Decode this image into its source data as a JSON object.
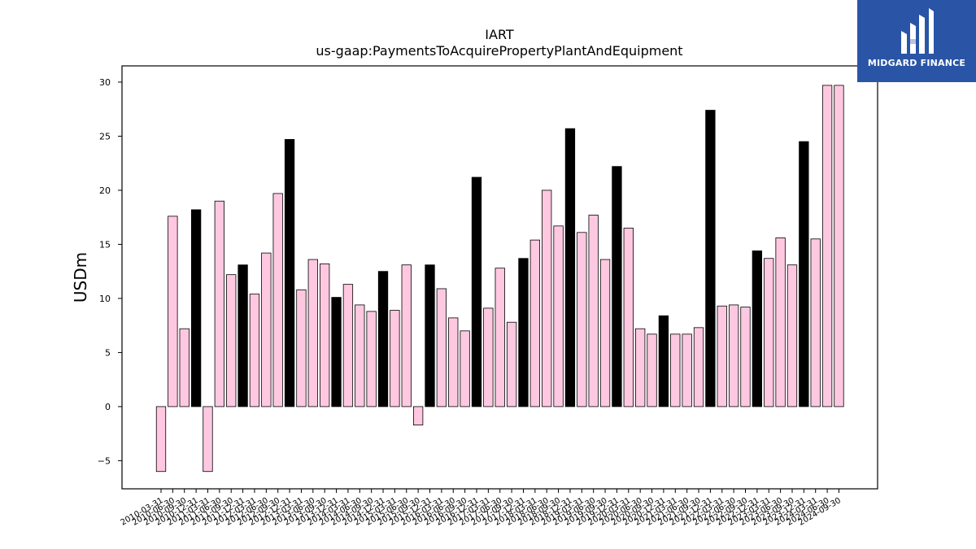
{
  "chart_data": {
    "type": "bar",
    "title": "IART",
    "subtitle": "us-gaap:PaymentsToAcquirePropertyPlantAndEquipment",
    "xlabel": "",
    "ylabel": "USDm",
    "ylim": [
      -7.6,
      31.5
    ],
    "yticks": [
      -5,
      0,
      5,
      10,
      15,
      20,
      25,
      30
    ],
    "grid": false,
    "legend": "none",
    "colors": {
      "quarter": "#ffc8e1",
      "year_end": "#000000",
      "edge": "#000000"
    },
    "categories": [
      "2010-03-31",
      "2010-06-30",
      "2010-09-30",
      "2010-12-31",
      "2011-03-31",
      "2011-06-30",
      "2011-09-30",
      "2011-12-31",
      "2012-03-31",
      "2012-06-30",
      "2012-09-30",
      "2012-12-31",
      "2013-03-31",
      "2013-06-30",
      "2013-09-30",
      "2013-12-31",
      "2014-03-31",
      "2014-06-30",
      "2014-09-30",
      "2014-12-31",
      "2015-03-31",
      "2015-06-30",
      "2015-09-30",
      "2015-12-31",
      "2016-03-31",
      "2016-06-30",
      "2016-09-30",
      "2016-12-31",
      "2017-03-31",
      "2017-06-30",
      "2017-09-30",
      "2017-12-31",
      "2018-03-31",
      "2018-06-30",
      "2018-09-30",
      "2018-12-31",
      "2019-03-31",
      "2019-06-30",
      "2019-09-30",
      "2019-12-31",
      "2020-03-31",
      "2020-06-30",
      "2020-09-30",
      "2020-12-31",
      "2021-03-31",
      "2021-06-30",
      "2021-09-30",
      "2021-12-31",
      "2022-03-31",
      "2022-06-30",
      "2022-09-30",
      "2022-12-31",
      "2023-03-31",
      "2023-06-30",
      "2023-09-30",
      "2023-12-31",
      "2024-03-31",
      "2024-06-30",
      "2024-09-30"
    ],
    "values": [
      -6.0,
      17.6,
      7.2,
      18.2,
      -6.0,
      19.0,
      12.2,
      13.1,
      10.4,
      14.2,
      19.7,
      24.7,
      10.8,
      13.6,
      13.2,
      10.1,
      11.3,
      9.4,
      8.8,
      12.5,
      8.9,
      13.1,
      -1.7,
      13.1,
      10.9,
      8.2,
      7.0,
      21.2,
      9.1,
      12.8,
      7.8,
      13.7,
      15.4,
      20.0,
      16.7,
      25.7,
      16.1,
      17.7,
      13.6,
      22.2,
      16.5,
      7.2,
      6.7,
      8.4,
      6.7,
      6.7,
      7.3,
      27.4,
      9.3,
      9.4,
      9.2,
      14.4,
      13.7,
      15.6,
      13.1,
      24.5,
      15.5,
      29.7,
      29.7
    ],
    "year_end_flags": [
      0,
      0,
      0,
      1,
      0,
      0,
      0,
      1,
      0,
      0,
      0,
      1,
      0,
      0,
      0,
      1,
      0,
      0,
      0,
      1,
      0,
      0,
      0,
      1,
      0,
      0,
      0,
      1,
      0,
      0,
      0,
      1,
      0,
      0,
      0,
      1,
      0,
      0,
      0,
      1,
      0,
      0,
      0,
      1,
      0,
      0,
      0,
      1,
      0,
      0,
      0,
      1,
      0,
      0,
      0,
      1,
      0,
      0,
      0
    ]
  },
  "logo": {
    "name": "MIDGARD FINANCE",
    "icon": "midgard-logo-icon"
  }
}
